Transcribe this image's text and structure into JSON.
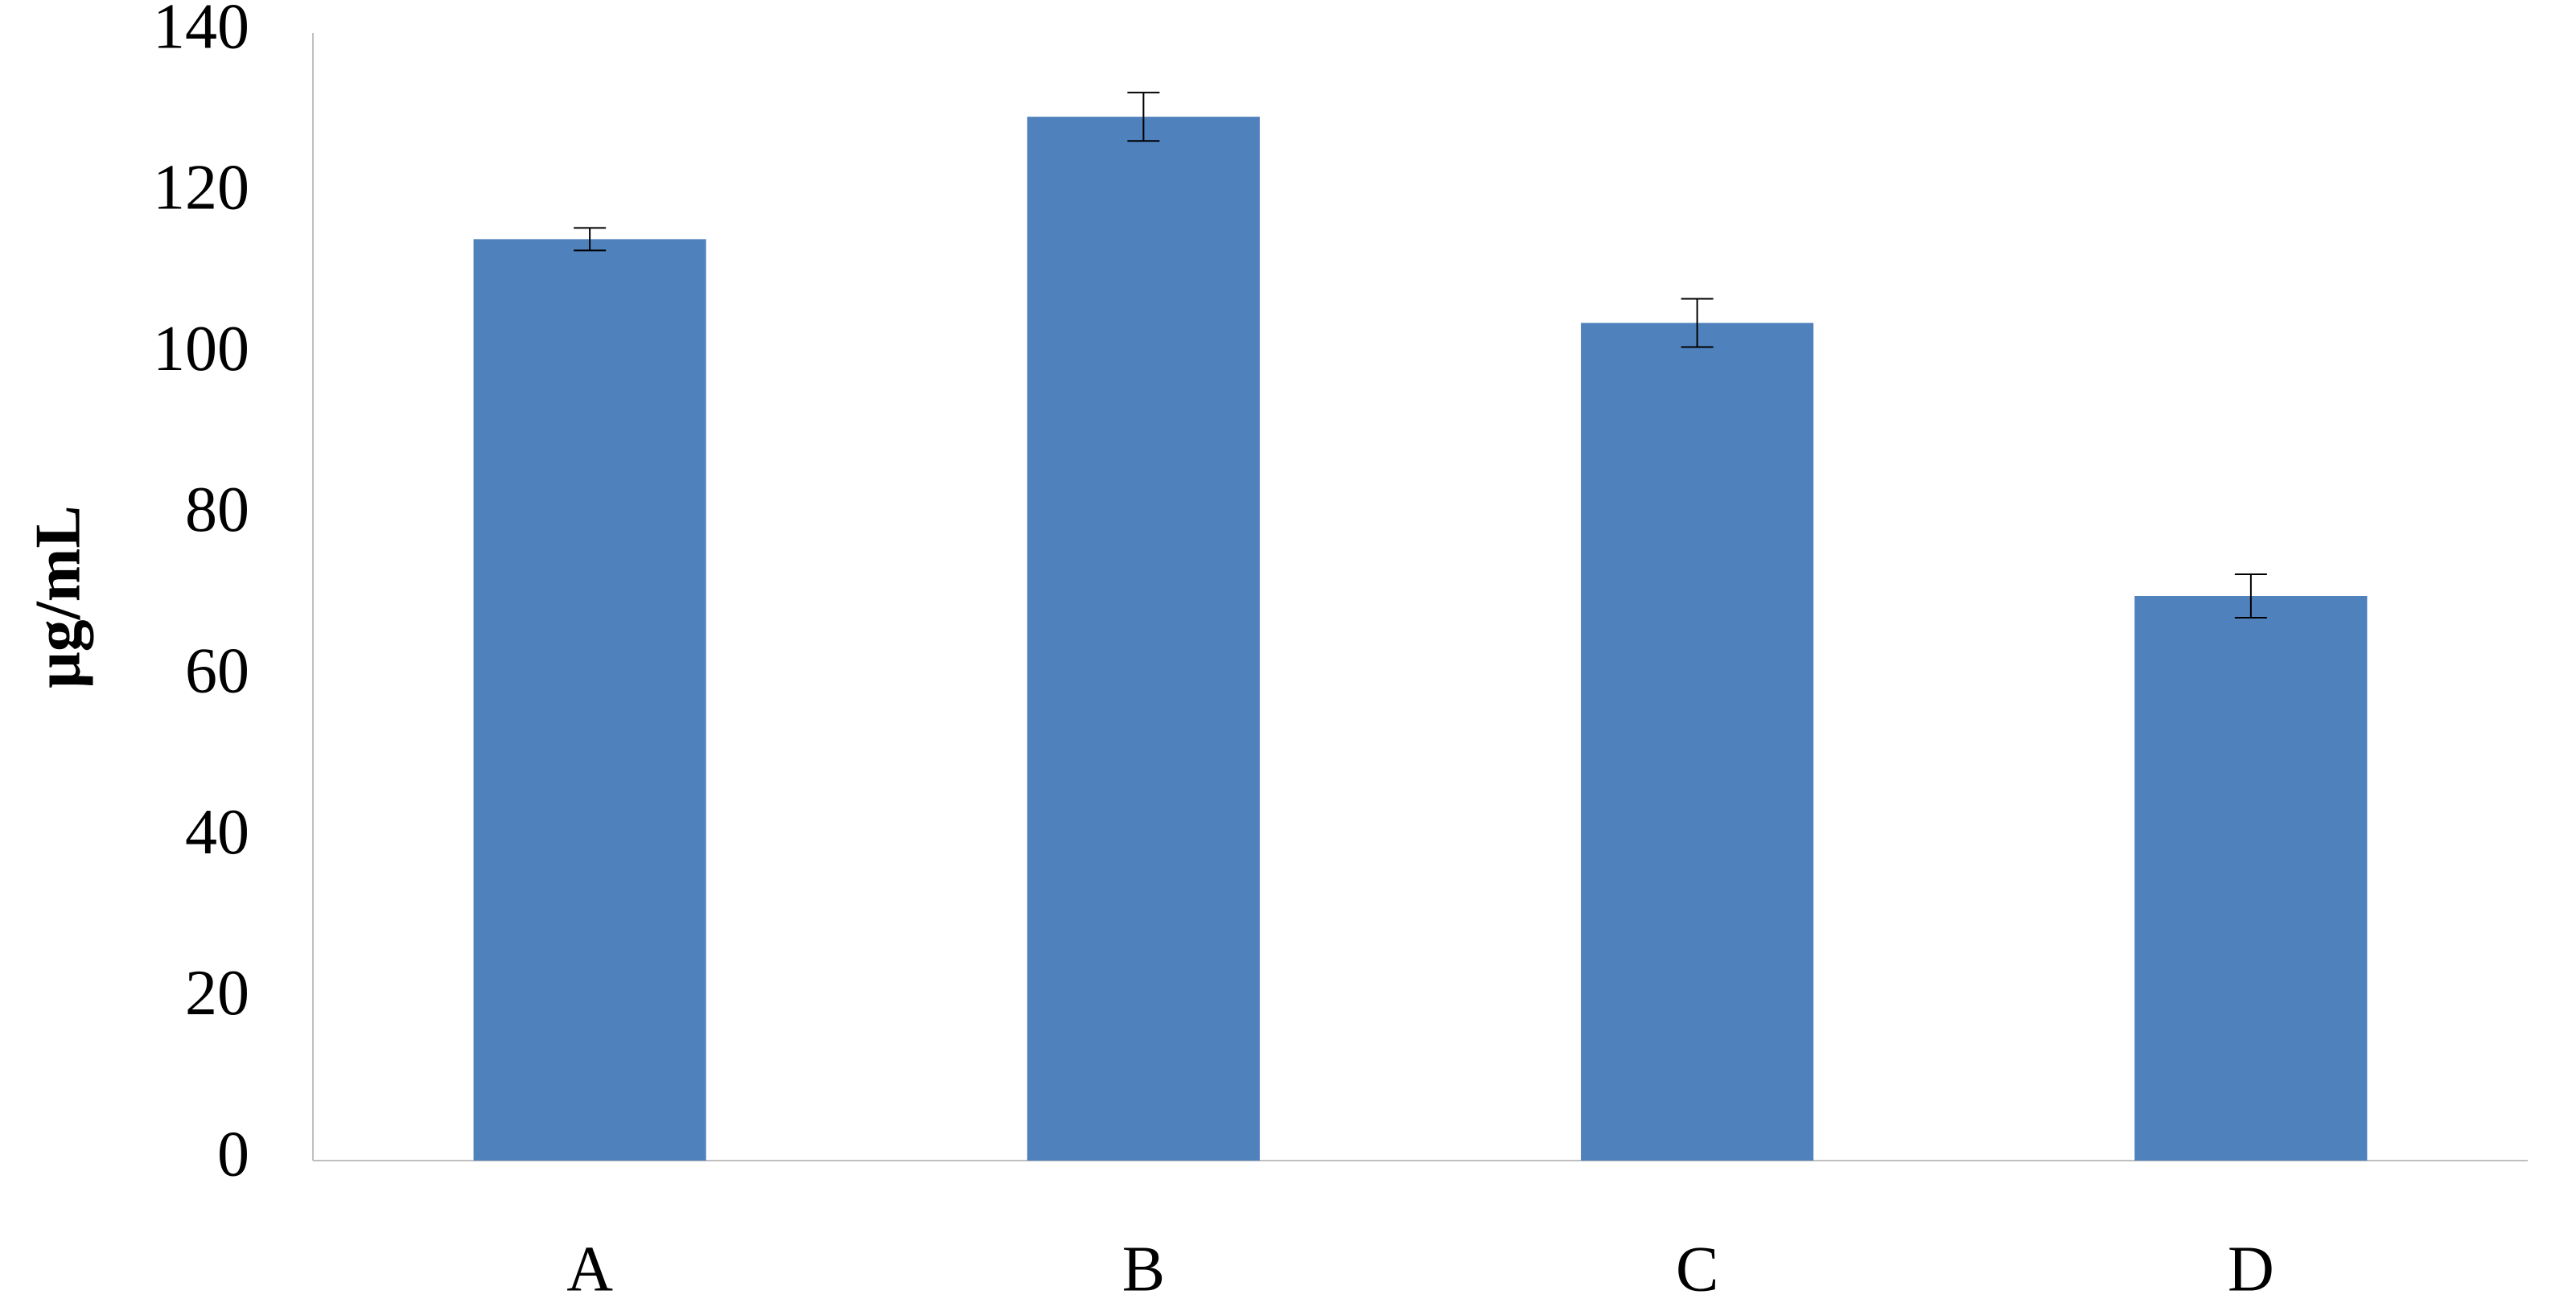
{
  "chart_data": {
    "type": "bar",
    "ylabel": "μg/mL",
    "categories": [
      "A",
      "B",
      "C",
      "D"
    ],
    "values": [
      114.4,
      129.6,
      104,
      70.1
    ],
    "errors": [
      1.4,
      3,
      3,
      2.7
    ],
    "color": "#4f81bd",
    "ylim": [
      0,
      140
    ],
    "yticks": [
      0,
      20,
      40,
      60,
      80,
      100,
      120,
      140
    ],
    "grid": false
  }
}
